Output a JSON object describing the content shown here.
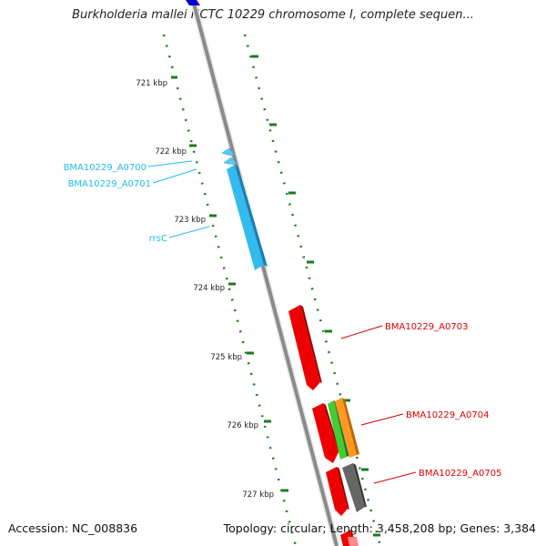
{
  "title": "Burkholderia mallei NCTC 10229 chromosome I, complete sequen...",
  "footer": {
    "accession": "Accession: NC_008836",
    "topology": "Topology: circular; Length: 3,458,208 bp; Genes: 3,384"
  },
  "kbp_labels": [
    "721 kbp",
    "722 kbp",
    "723 kbp",
    "724 kbp",
    "725 kbp",
    "726 kbp",
    "727 kbp"
  ],
  "genes_left": [
    {
      "name": "BMA10229_A0700",
      "color": "#22bbee"
    },
    {
      "name": "BMA10229_A0701",
      "color": "#22bbee"
    },
    {
      "name": "rrsC",
      "color": "#22bbee"
    }
  ],
  "genes_right": [
    {
      "name": "BMA10229_A0703",
      "color": "#dd0000"
    },
    {
      "name": "BMA10229_A0704",
      "color": "#dd0000"
    },
    {
      "name": "BMA10229_A0705",
      "color": "#dd0000"
    }
  ],
  "colors": {
    "backbone": "#8c8c8c",
    "tick": "#1f7a1f",
    "rRNA": "#33bbee",
    "cds": "#ee0000",
    "green_feature": "#44cc33",
    "orange_feature": "#ff9922",
    "gray_feature": "#666666",
    "top_feature": "#0000cc"
  }
}
